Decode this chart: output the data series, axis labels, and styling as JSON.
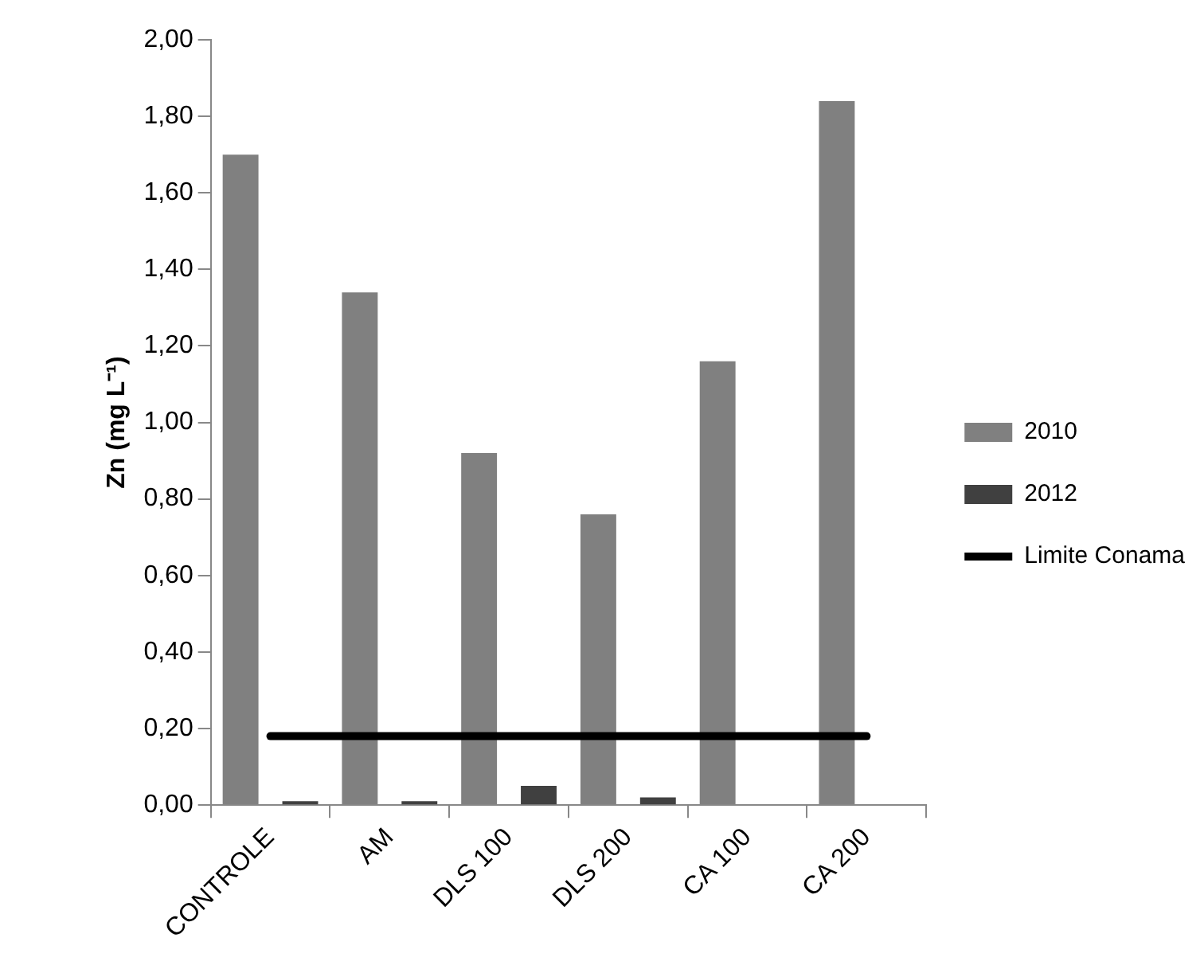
{
  "chart_data": {
    "type": "bar",
    "ylabel": "Zn (mg L⁻¹)",
    "categories": [
      "CONTROLE",
      "AM",
      "DLS 100",
      "DLS 200",
      "CA 100",
      "CA 200"
    ],
    "series": [
      {
        "name": "2010",
        "color": "#808080",
        "values": [
          1.7,
          1.34,
          0.92,
          0.76,
          1.16,
          1.84
        ]
      },
      {
        "name": "2012",
        "color": "#404040",
        "values": [
          0.01,
          0.01,
          0.05,
          0.02,
          0,
          0
        ]
      },
      {
        "name": "Limite Conama",
        "type": "line",
        "color": "#000000",
        "values": [
          0.18,
          0.18,
          0.18,
          0.18,
          0.18,
          0.18
        ]
      }
    ],
    "ylim": [
      0,
      2
    ],
    "yticks": [
      {
        "value": 0,
        "label": "0,00"
      },
      {
        "value": 0.2,
        "label": "0,20"
      },
      {
        "value": 0.4,
        "label": "0,40"
      },
      {
        "value": 0.6,
        "label": "0,60"
      },
      {
        "value": 0.8,
        "label": "0,80"
      },
      {
        "value": 1.0,
        "label": "1,00"
      },
      {
        "value": 1.2,
        "label": "1,20"
      },
      {
        "value": 1.4,
        "label": "1,40"
      },
      {
        "value": 1.6,
        "label": "1,60"
      },
      {
        "value": 1.8,
        "label": "1,80"
      },
      {
        "value": 2.0,
        "label": "2,00"
      }
    ],
    "grid": false,
    "legend": "right",
    "marker": "none"
  }
}
